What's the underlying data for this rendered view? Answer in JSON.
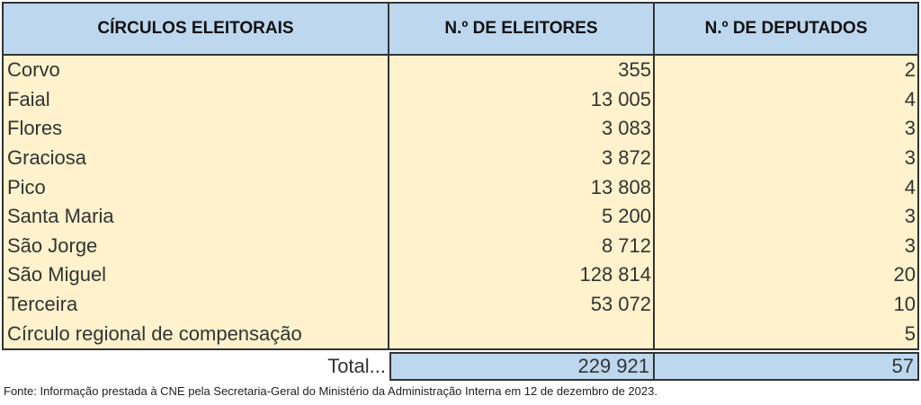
{
  "table": {
    "header": [
      "CÍRCULOS ELEITORAIS",
      "N.º DE ELEITORES",
      "N.º DE DEPUTADOS"
    ],
    "rows": [
      {
        "name": "Corvo",
        "electors": "355",
        "deputies": "2"
      },
      {
        "name": "Faial",
        "electors": "13 005",
        "deputies": "4"
      },
      {
        "name": "Flores",
        "electors": "3 083",
        "deputies": "3"
      },
      {
        "name": "Graciosa",
        "electors": "3 872",
        "deputies": "3"
      },
      {
        "name": "Pico",
        "electors": "13 808",
        "deputies": "4"
      },
      {
        "name": "Santa Maria",
        "electors": "5 200",
        "deputies": "3"
      },
      {
        "name": "São Jorge",
        "electors": "8 712",
        "deputies": "3"
      },
      {
        "name": "São Miguel",
        "electors": "128 814",
        "deputies": "20"
      },
      {
        "name": "Terceira",
        "electors": "53 072",
        "deputies": "10"
      },
      {
        "name": "Círculo regional de compensação",
        "deputies": "5"
      }
    ],
    "total": {
      "label": "Total...",
      "electors": "229 921",
      "deputies": "57"
    }
  },
  "source": "Fonte: Informação prestada à CNE pela Secretaria-Geral do Ministério da Administração Interna em 12 de dezembro de 2023."
}
